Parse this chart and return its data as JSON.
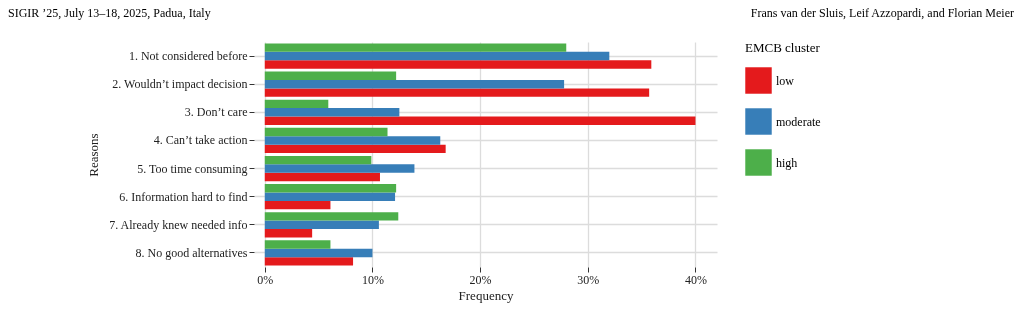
{
  "chart_data": {
    "type": "bar",
    "orientation": "horizontal",
    "annotations": [
      "SIGIR ’25, July 13–18, 2025, Padua, Italy",
      "Frans van der Sluis, Leif Azzopardi, and Florian Meier"
    ],
    "xlabel": "Frequency",
    "ylabel": "Reasons",
    "legend_title": "EMCB cluster",
    "categories": [
      "1. Not considered before",
      "2. Wouldn’t impact decision",
      "3. Don’t care",
      "4. Can’t take action",
      "5. Too time consuming",
      "6. Information hard to find",
      "7. Already knew needed info",
      "8. No good alternatives"
    ],
    "series": [
      {
        "name": "low",
        "color": "#e41a1c",
        "values": [
          35.9,
          35.7,
          40.0,
          16.8,
          10.7,
          6.1,
          4.4,
          8.2
        ]
      },
      {
        "name": "moderate",
        "color": "#377eb8",
        "values": [
          32.0,
          27.8,
          12.5,
          16.3,
          13.9,
          12.1,
          10.6,
          10.0
        ]
      },
      {
        "name": "high",
        "color": "#4daf4a",
        "values": [
          28.0,
          12.2,
          5.9,
          11.4,
          9.9,
          12.2,
          12.4,
          6.1
        ]
      }
    ],
    "xlim": [
      -1,
      42
    ],
    "xticks": [
      {
        "value": 0,
        "label": "0%"
      },
      {
        "value": 10,
        "label": "10%"
      },
      {
        "value": 20,
        "label": "20%"
      },
      {
        "value": 30,
        "label": "30%"
      },
      {
        "value": 40,
        "label": "40%"
      }
    ],
    "grid": true,
    "legend": "right"
  }
}
